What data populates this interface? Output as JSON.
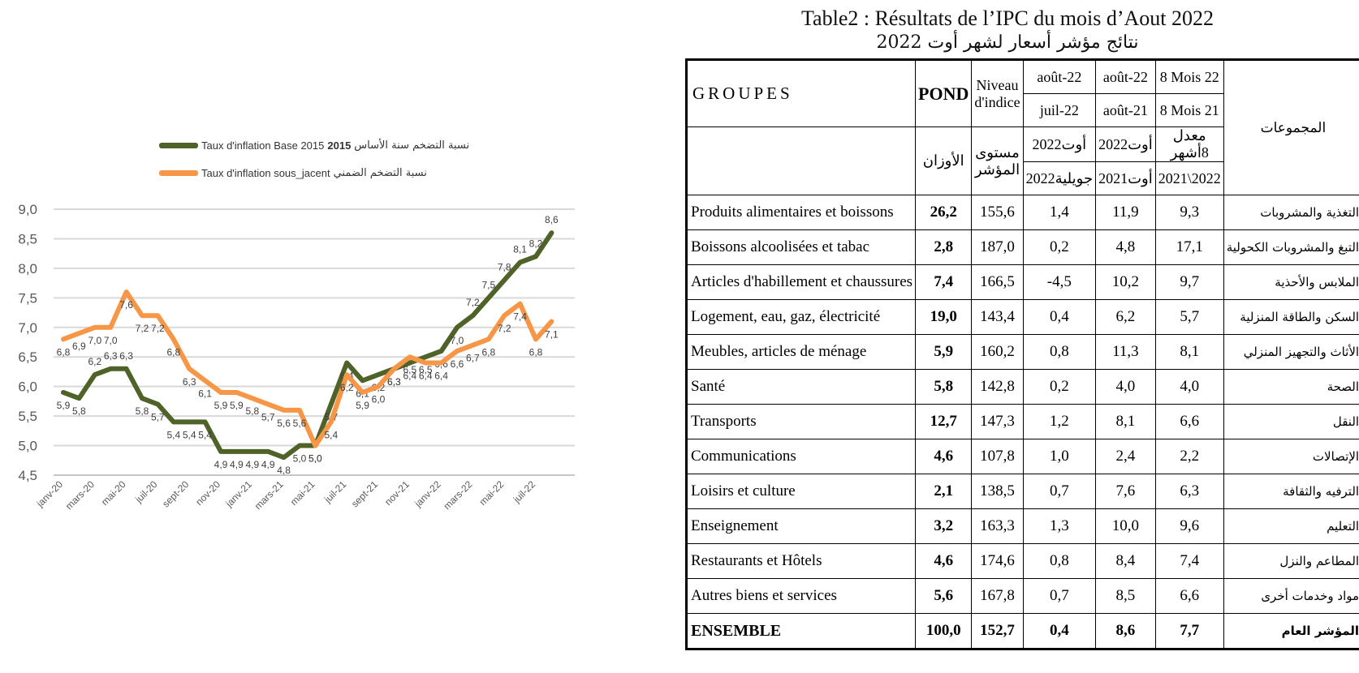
{
  "chart_data": {
    "type": "line",
    "categories": [
      "janv-20",
      "févr-20",
      "mars-20",
      "avr-20",
      "mai-20",
      "juin-20",
      "juil-20",
      "août-20",
      "sept-20",
      "oct-20",
      "nov-20",
      "déc-20",
      "janv-21",
      "févr-21",
      "mars-21",
      "avr-21",
      "mai-21",
      "juin-21",
      "juil-21",
      "août-21",
      "sept-21",
      "oct-21",
      "nov-21",
      "déc-21",
      "janv-22",
      "févr-22",
      "mars-22",
      "avr-22",
      "mai-22",
      "juin-22",
      "juil-22",
      "août-22"
    ],
    "tick_labels": [
      "janv-20",
      "mars-20",
      "mai-20",
      "juil-20",
      "sept-20",
      "nov-20",
      "janv-21",
      "mars-21",
      "mai-21",
      "juil-21",
      "sept-21",
      "nov-21",
      "janv-22",
      "mars-22",
      "mai-22",
      "juil-22"
    ],
    "y_tick_labels": [
      "4,5",
      "5,0",
      "5,5",
      "6,0",
      "6,5",
      "7,0",
      "7,5",
      "8,0",
      "8,5",
      "9,0"
    ],
    "ylim": [
      4.5,
      9.0
    ],
    "grid": true,
    "legend_position": "top",
    "series": [
      {
        "name": "Taux d'inflation Base 2015 2015نسبة التضخم سنة الأساس",
        "legend_label_fr": "Taux d'inflation Base 2015",
        "legend_label_year": "2015",
        "legend_label_ar": "نسبة التضخم سنة الأساس",
        "color": "#4f6228",
        "values": [
          5.9,
          5.8,
          6.2,
          6.3,
          6.3,
          5.8,
          5.7,
          5.4,
          5.4,
          5.4,
          4.9,
          4.9,
          4.9,
          4.9,
          4.8,
          5.0,
          5.0,
          5.7,
          6.4,
          6.1,
          6.2,
          6.3,
          6.4,
          6.5,
          6.6,
          7.0,
          7.2,
          7.5,
          7.8,
          8.1,
          8.2,
          8.6
        ],
        "labels": [
          "5,9",
          "5,8",
          "6,2",
          "6,3",
          "6,3",
          "5,8",
          "5,7",
          "5,4",
          "5,4",
          "5,4",
          "4,9",
          "4,9",
          "4,9",
          "4,9",
          "4,8",
          "5,0",
          "5,0",
          "5,7",
          "6,4",
          "6,1",
          "6,2",
          "6,3",
          "6,4",
          "6,5",
          "6,6",
          "7,0",
          "7,2",
          "7,5",
          "7,8",
          "8,1",
          "8,2",
          "8,6"
        ]
      },
      {
        "name": "Taux d'inflation sous_jacent نسبة التضخم الضمني",
        "legend_label_fr": "Taux d'inflation sous_jacent",
        "legend_label_ar": "نسبة التضخم الضمني",
        "color": "#f79646",
        "values": [
          6.8,
          6.9,
          7.0,
          7.0,
          7.6,
          7.2,
          7.2,
          6.8,
          6.3,
          6.1,
          5.9,
          5.9,
          5.8,
          5.7,
          5.6,
          5.6,
          5.0,
          5.4,
          6.2,
          5.9,
          6.0,
          6.3,
          6.5,
          6.4,
          6.4,
          6.6,
          6.7,
          6.8,
          7.2,
          7.4,
          6.8,
          7.1
        ],
        "labels": [
          "6,8",
          "6,9",
          "7,0",
          "7,0",
          "7,6",
          "7,2",
          "7,2",
          "6,8",
          "6,3",
          "6,1",
          "5,9",
          "5,9",
          "5,8",
          "5,7",
          "5,6",
          "5,6",
          "5,0",
          "5,4",
          "6,2",
          "5,9",
          "6,0",
          "6,3",
          "6,5",
          "6,4",
          "6,4",
          "6,6",
          "6,7",
          "6,8",
          "7,2",
          "7,4",
          "6,8",
          "7,1"
        ]
      }
    ]
  },
  "table": {
    "title_fr": "Table2 : Résultats de l’IPC du mois d’Aout 2022",
    "title_ar": "نتائج مؤشر أسعار لشهر أوت 2022",
    "header": {
      "groupes": "GROUPES",
      "pond": "POND",
      "niveau": "Niveau d'indice",
      "aout22_a": "août-22",
      "juil22": "juil-22",
      "aout22_b": "août-22",
      "aout21": "août-21",
      "mois8_22": "8 Mois 22",
      "mois8_21": "8 Mois 21",
      "mojmouat": "المجموعات",
      "awzan": "الأوزان",
      "mostawa": "مستوى المؤشر",
      "ar_aout2022_a": "أوت2022",
      "ar_juillet2022": "جويلية2022",
      "ar_aout2022_b": "أوت2022",
      "ar_aout2021": "أوت2021",
      "ar_moadal": "معدل 8أشهر",
      "ar_period": "2021\\2022"
    },
    "rows": [
      {
        "name": "Produits alimentaires et boissons",
        "pond": "26,2",
        "niveau": "155,6",
        "m1": "1,4",
        "m2": "11,9",
        "m3": "9,3",
        "ar": "التغذية والمشروبات"
      },
      {
        "name": "Boissons alcoolisées et tabac",
        "pond": "2,8",
        "niveau": "187,0",
        "m1": "0,2",
        "m2": "4,8",
        "m3": "17,1",
        "ar": "التبغ والمشروبات الكحولية"
      },
      {
        "name": "Articles d'habillement et chaussures",
        "pond": "7,4",
        "niveau": "166,5",
        "m1": "-4,5",
        "m2": "10,2",
        "m3": "9,7",
        "ar": "الملابس والأحذية"
      },
      {
        "name": "Logement, eau, gaz, électricité",
        "pond": "19,0",
        "niveau": "143,4",
        "m1": "0,4",
        "m2": "6,2",
        "m3": "5,7",
        "ar": "السكن والطاقة المنزلية"
      },
      {
        "name": "Meubles, articles de ménage",
        "pond": "5,9",
        "niveau": "160,2",
        "m1": "0,8",
        "m2": "11,3",
        "m3": "8,1",
        "ar": "الأثاث والتجهيز المنزلي"
      },
      {
        "name": "Santé",
        "pond": "5,8",
        "niveau": "142,8",
        "m1": "0,2",
        "m2": "4,0",
        "m3": "4,0",
        "ar": "الصحة"
      },
      {
        "name": "Transports",
        "pond": "12,7",
        "niveau": "147,3",
        "m1": "1,2",
        "m2": "8,1",
        "m3": "6,6",
        "ar": "النقل"
      },
      {
        "name": "Communications",
        "pond": "4,6",
        "niveau": "107,8",
        "m1": "1,0",
        "m2": "2,4",
        "m3": "2,2",
        "ar": "الإتصالات"
      },
      {
        "name": "Loisirs et culture",
        "pond": "2,1",
        "niveau": "138,5",
        "m1": "0,7",
        "m2": "7,6",
        "m3": "6,3",
        "ar": "الترفيه والثقافة"
      },
      {
        "name": "Enseignement",
        "pond": "3,2",
        "niveau": "163,3",
        "m1": "1,3",
        "m2": "10,0",
        "m3": "9,6",
        "ar": "التعليم"
      },
      {
        "name": "Restaurants et Hôtels",
        "pond": "4,6",
        "niveau": "174,6",
        "m1": "0,8",
        "m2": "8,4",
        "m3": "7,4",
        "ar": "المطاعم والنزل"
      },
      {
        "name": "Autres biens et services",
        "pond": "5,6",
        "niveau": "167,8",
        "m1": "0,7",
        "m2": "8,5",
        "m3": "6,6",
        "ar": "مواد وخدمات أخرى"
      },
      {
        "name": "ENSEMBLE",
        "pond": "100,0",
        "niveau": "152,7",
        "m1": "0,4",
        "m2": "8,6",
        "m3": "7,7",
        "ar": "المؤشر العام",
        "total": true
      }
    ]
  }
}
